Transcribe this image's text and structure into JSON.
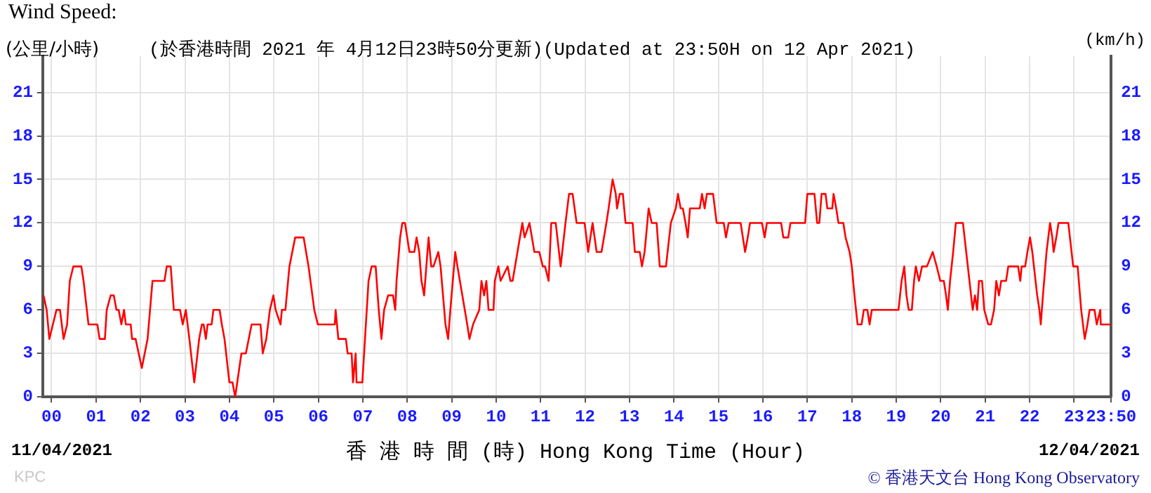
{
  "chart_data": {
    "type": "line",
    "title": "Wind Speed:",
    "subtitle": "(於香港時間 2021 年 4月12日23時50分更新)(Updated at 23:50H on 12 Apr 2021)",
    "ylabel": "(公里/小時)",
    "y2label": "(km/h)",
    "xlabel": "香 港 時 間 (時) Hong Kong Time (Hour)",
    "annotations": [
      "11/04/2021",
      "12/04/2021",
      "KPC",
      "© 香港天文台 Hong Kong Observatory"
    ],
    "x": [
      -0.18,
      -0.11,
      -0.05,
      0.03,
      0.11,
      0.19,
      0.27,
      0.35,
      0.41,
      0.49,
      0.67,
      0.72,
      0.83,
      1.03,
      1.08,
      1.2,
      1.24,
      1.33,
      1.4,
      1.46,
      1.51,
      1.57,
      1.63,
      1.67,
      1.78,
      1.81,
      1.89,
      2.03,
      2.16,
      2.27,
      2.54,
      2.59,
      2.68,
      2.75,
      2.89,
      2.95,
      3.02,
      3.1,
      3.21,
      3.32,
      3.38,
      3.42,
      3.47,
      3.51,
      3.6,
      3.64,
      3.78,
      3.83,
      3.89,
      4.0,
      4.07,
      4.13,
      4.27,
      4.37,
      4.5,
      4.7,
      4.75,
      4.83,
      4.91,
      4.99,
      5.04,
      5.15,
      5.18,
      5.26,
      5.35,
      5.48,
      5.67,
      5.78,
      5.91,
      5.99,
      6.37,
      6.39,
      6.45,
      6.62,
      6.66,
      6.75,
      6.78,
      6.84,
      6.86,
      6.99,
      7.05,
      7.13,
      7.2,
      7.29,
      7.36,
      7.42,
      7.48,
      7.57,
      7.68,
      7.73,
      7.76,
      7.84,
      7.89,
      7.95,
      8.0,
      8.05,
      8.16,
      8.21,
      8.27,
      8.32,
      8.38,
      8.43,
      8.48,
      8.54,
      8.59,
      8.7,
      8.75,
      8.86,
      8.92,
      8.97,
      9.08,
      9.13,
      9.24,
      9.35,
      9.4,
      9.48,
      9.62,
      9.67,
      9.73,
      9.78,
      9.83,
      9.94,
      9.97,
      10.05,
      10.1,
      10.26,
      10.32,
      10.37,
      10.48,
      10.59,
      10.64,
      10.75,
      10.86,
      10.97,
      11.05,
      11.1,
      11.18,
      11.24,
      11.34,
      11.45,
      11.56,
      11.64,
      11.72,
      11.81,
      11.99,
      12.07,
      12.17,
      12.26,
      12.37,
      12.48,
      12.53,
      12.62,
      12.69,
      12.72,
      12.78,
      12.85,
      12.91,
      13.07,
      13.12,
      13.23,
      13.28,
      13.34,
      13.43,
      13.5,
      13.61,
      13.68,
      13.82,
      13.93,
      14.04,
      14.09,
      14.15,
      14.2,
      14.26,
      14.31,
      14.36,
      14.58,
      14.63,
      14.69,
      14.74,
      14.88,
      14.96,
      15.12,
      15.17,
      15.23,
      15.5,
      15.55,
      15.6,
      15.66,
      15.71,
      15.98,
      16.04,
      16.09,
      16.41,
      16.46,
      16.57,
      16.62,
      16.95,
      17.0,
      17.16,
      17.22,
      17.27,
      17.32,
      17.41,
      17.45,
      17.56,
      17.59,
      17.65,
      17.7,
      17.81,
      17.86,
      17.95,
      18.0,
      18.06,
      18.13,
      18.22,
      18.27,
      18.35,
      18.4,
      18.45,
      19.05,
      19.12,
      19.18,
      19.23,
      19.28,
      19.35,
      19.4,
      19.44,
      19.51,
      19.58,
      19.69,
      19.82,
      19.91,
      19.99,
      20.07,
      20.12,
      20.16,
      20.21,
      20.28,
      20.34,
      20.5,
      20.61,
      20.72,
      20.77,
      20.82,
      20.86,
      20.93,
      20.98,
      21.07,
      21.13,
      21.2,
      21.25,
      21.31,
      21.36,
      21.47,
      21.52,
      21.74,
      21.79,
      21.82,
      21.9,
      21.95,
      22.01,
      22.06,
      22.17,
      22.22,
      22.25,
      22.3,
      22.38,
      22.46,
      22.51,
      22.54,
      22.6,
      22.65,
      22.87,
      22.98,
      23.08,
      23.16,
      23.24,
      23.3,
      23.35,
      23.46,
      23.51,
      23.59,
      23.6,
      23.83
    ],
    "series": [
      {
        "color": "#ff0000",
        "values": [
          7,
          6,
          4,
          5,
          6,
          6,
          4,
          5,
          8,
          9,
          9,
          8,
          5,
          5,
          4,
          4,
          6,
          7,
          7,
          6,
          6,
          5,
          6,
          5,
          5,
          4,
          4,
          2,
          4,
          8,
          8,
          9,
          9,
          6,
          6,
          5,
          6,
          4,
          1,
          4,
          5,
          5,
          4,
          5,
          5,
          6,
          6,
          5,
          4,
          1,
          1,
          0,
          3,
          3,
          5,
          5,
          3,
          4,
          6,
          7,
          6,
          5,
          6,
          6,
          9,
          11,
          11,
          9,
          6,
          5,
          5,
          6,
          4,
          4,
          3,
          3,
          1,
          3,
          1,
          1,
          4,
          8,
          9,
          9,
          6,
          4,
          6,
          7,
          7,
          6,
          8,
          11,
          12,
          12,
          11,
          10,
          10,
          11,
          10,
          8,
          7,
          9,
          11,
          9,
          9,
          10,
          9,
          5,
          4,
          6,
          10,
          9,
          7,
          5,
          4,
          5,
          6,
          8,
          7,
          8,
          6,
          6,
          8,
          9,
          8,
          9,
          8,
          8,
          10,
          12,
          11,
          12,
          10,
          10,
          9,
          9,
          8,
          12,
          12,
          9,
          12,
          14,
          14,
          12,
          12,
          10,
          12,
          10,
          10,
          12,
          13,
          15,
          14,
          13,
          14,
          14,
          12,
          12,
          10,
          10,
          9,
          10,
          13,
          12,
          12,
          9,
          9,
          12,
          13,
          14,
          13,
          13,
          12,
          11,
          13,
          13,
          14,
          13,
          14,
          14,
          12,
          12,
          11,
          12,
          12,
          11,
          10,
          11,
          12,
          12,
          11,
          12,
          12,
          11,
          11,
          12,
          12,
          14,
          14,
          12,
          12,
          14,
          14,
          13,
          13,
          14,
          13,
          12,
          12,
          11,
          10,
          9,
          7,
          5,
          5,
          6,
          6,
          5,
          6,
          6,
          8,
          9,
          7,
          6,
          6,
          8,
          9,
          8,
          9,
          9,
          10,
          9,
          8,
          8,
          7,
          6,
          8,
          10,
          12,
          12,
          9,
          6,
          7,
          6,
          8,
          8,
          6,
          5,
          5,
          6,
          8,
          7,
          8,
          8,
          9,
          9,
          8,
          9,
          9,
          10,
          11,
          10,
          7,
          6,
          5,
          7,
          10,
          12,
          11,
          10,
          11,
          12,
          12,
          9,
          9,
          6,
          4,
          5,
          6,
          6,
          5,
          6,
          5,
          5
        ]
      }
    ],
    "xlim": [
      -0.2,
      23.8333
    ],
    "xticks": [
      {
        "value": 0,
        "label": "00"
      },
      {
        "value": 1,
        "label": "01"
      },
      {
        "value": 2,
        "label": "02"
      },
      {
        "value": 3,
        "label": "03"
      },
      {
        "value": 4,
        "label": "04"
      },
      {
        "value": 5,
        "label": "05"
      },
      {
        "value": 6,
        "label": "06"
      },
      {
        "value": 7,
        "label": "07"
      },
      {
        "value": 8,
        "label": "08"
      },
      {
        "value": 9,
        "label": "09"
      },
      10,
      11,
      12,
      13,
      14,
      15,
      16,
      17,
      18,
      19,
      20,
      21,
      22,
      23,
      {
        "value": 23.8333,
        "label": "23:50"
      }
    ],
    "ylim": [
      0,
      23.5
    ],
    "yticks": [
      0,
      3,
      6,
      9,
      12,
      15,
      18,
      21
    ],
    "y2lim": [
      0,
      23.5
    ],
    "y2ticks": [
      0,
      3,
      6,
      9,
      12,
      15,
      18,
      21
    ],
    "grid": true,
    "legend": false,
    "marker": "none",
    "line_style": "solid"
  }
}
